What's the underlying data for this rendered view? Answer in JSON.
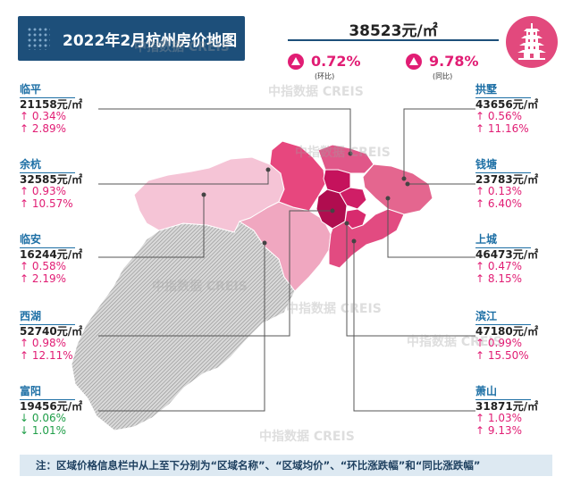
{
  "title": "2022年2月杭州房价地图",
  "headline": {
    "avg_price": "38523元/㎡",
    "mom_value": "0.72%",
    "mom_tag": "(环比)",
    "yoy_value": "9.78%",
    "yoy_tag": "(同比)"
  },
  "watermark": "中指数据 CREIS",
  "districts_left": [
    {
      "name": "临平",
      "price": "21158元/㎡",
      "mom": "↑ 0.34%",
      "yoy": "↑ 2.89%",
      "direction": "up"
    },
    {
      "name": "余杭",
      "price": "32585元/㎡",
      "mom": "↑ 0.93%",
      "yoy": "↑ 10.57%",
      "direction": "up"
    },
    {
      "name": "临安",
      "price": "16244元/㎡",
      "mom": "↑ 0.58%",
      "yoy": "↑ 2.19%",
      "direction": "up"
    },
    {
      "name": "西湖",
      "price": "52740元/㎡",
      "mom": "↑ 0.98%",
      "yoy": "↑ 12.11%",
      "direction": "up"
    },
    {
      "name": "富阳",
      "price": "19456元/㎡",
      "mom": "↓ 0.06%",
      "yoy": "↓ 1.01%",
      "direction": "down"
    }
  ],
  "districts_right": [
    {
      "name": "拱墅",
      "price": "43656元/㎡",
      "mom": "↑ 0.56%",
      "yoy": "↑ 11.16%",
      "direction": "up"
    },
    {
      "name": "钱塘",
      "price": "23783元/㎡",
      "mom": "↑ 0.13%",
      "yoy": "↑ 6.40%",
      "direction": "up"
    },
    {
      "name": "上城",
      "price": "46473元/㎡",
      "mom": "↑ 0.47%",
      "yoy": "↑ 8.15%",
      "direction": "up"
    },
    {
      "name": "滨江",
      "price": "47180元/㎡",
      "mom": "↑ 0.99%",
      "yoy": "↑ 15.50%",
      "direction": "up"
    },
    {
      "name": "萧山",
      "price": "31871元/㎡",
      "mom": "↑ 1.03%",
      "yoy": "↑ 9.13%",
      "direction": "up"
    }
  ],
  "footnote": "注：区域价格信息栏中从上至下分别为“区域名称”、“区域均价”、“环比涨跌幅”和“同比涨跌幅”",
  "colors": {
    "banner": "#1d4f7a",
    "accent": "#e11d74",
    "up": "#e11d74",
    "down": "#1f9e48",
    "name": "#1d6fa5"
  },
  "icons": [
    "pagoda-logo-icon",
    "up-triangle-icon"
  ]
}
